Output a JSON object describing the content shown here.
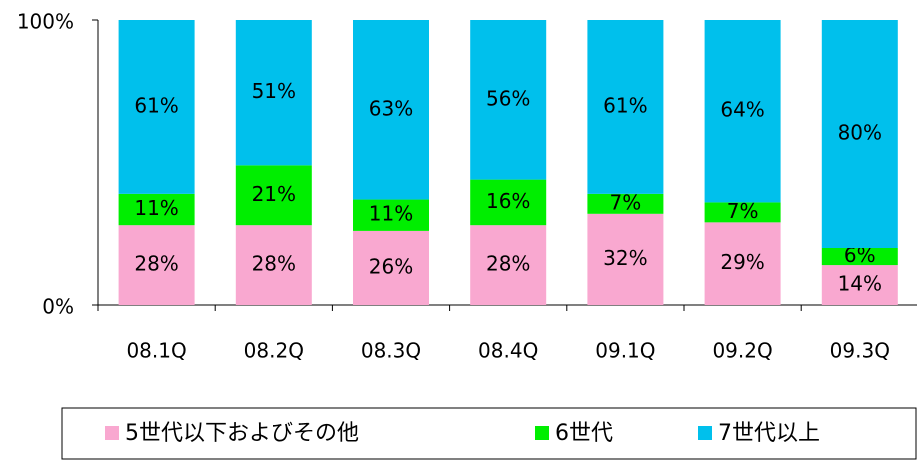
{
  "chart_data": {
    "type": "stacked_bar",
    "categories": [
      "08.1Q",
      "08.2Q",
      "08.3Q",
      "08.4Q",
      "09.1Q",
      "09.2Q",
      "09.3Q"
    ],
    "series": [
      {
        "name": "5世代以下およびその他",
        "color": "#f9a8d0",
        "values": [
          28,
          28,
          26,
          28,
          32,
          29,
          14
        ],
        "value_labels": [
          "28%",
          "28%",
          "26%",
          "28%",
          "32%",
          "29%",
          "14%"
        ]
      },
      {
        "name": "6世代",
        "color": "#00ee00",
        "values": [
          11,
          21,
          11,
          16,
          7,
          7,
          6
        ],
        "value_labels": [
          "11%",
          "21%",
          "11%",
          "16%",
          "7%",
          "7%",
          "6%"
        ]
      },
      {
        "name": "7世代以上",
        "color": "#00c0ec",
        "values": [
          61,
          51,
          63,
          56,
          61,
          64,
          80
        ],
        "value_labels": [
          "61%",
          "51%",
          "63%",
          "56%",
          "61%",
          "64%",
          "80%"
        ]
      }
    ],
    "ylim": [
      0,
      100
    ],
    "yticks": [
      {
        "value": 0,
        "label": "0%"
      },
      {
        "value": 100,
        "label": "100%"
      }
    ],
    "legend": "bottom"
  }
}
